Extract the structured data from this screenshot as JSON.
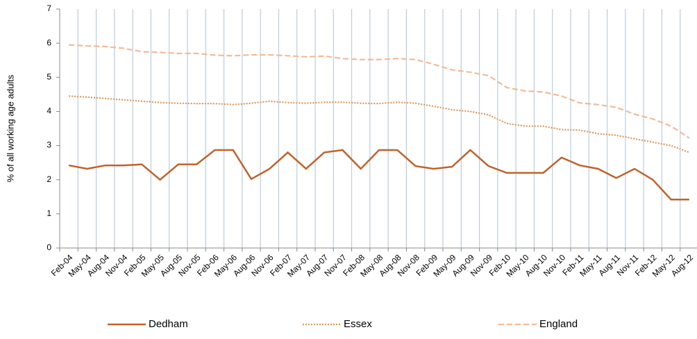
{
  "chart_data": {
    "type": "line",
    "y_label": "% of all working age adults",
    "categories": [
      "Feb-04",
      "May-04",
      "Aug-04",
      "Nov-04",
      "Feb-05",
      "May-05",
      "Aug-05",
      "Nov-05",
      "Feb-06",
      "May-06",
      "Aug-06",
      "Nov-06",
      "Feb-07",
      "May-07",
      "Aug-07",
      "Nov-07",
      "Feb-08",
      "May-08",
      "Aug-08",
      "Nov-08",
      "Feb-09",
      "May-09",
      "Aug-09",
      "Nov-09",
      "Feb-10",
      "May-10",
      "Aug-10",
      "Nov-10",
      "Feb-11",
      "May-11",
      "Aug-11",
      "Nov-11",
      "Feb-12",
      "May-12",
      "Aug-12"
    ],
    "series": [
      {
        "name": "Dedham",
        "color": "#c0622a",
        "line_style": "solid",
        "values": [
          2.42,
          2.32,
          2.42,
          2.42,
          2.45,
          2.0,
          2.45,
          2.45,
          2.87,
          2.87,
          2.02,
          2.32,
          2.8,
          2.32,
          2.8,
          2.87,
          2.32,
          2.87,
          2.87,
          2.4,
          2.32,
          2.38,
          2.87,
          2.4,
          2.2,
          2.2,
          2.2,
          2.65,
          2.42,
          2.32,
          2.05,
          2.32,
          2.0,
          1.42,
          1.42
        ]
      },
      {
        "name": "Essex",
        "color": "#e0965a",
        "line_style": "dotted",
        "values": [
          4.45,
          4.42,
          4.38,
          4.34,
          4.3,
          4.26,
          4.24,
          4.23,
          4.23,
          4.2,
          4.24,
          4.3,
          4.26,
          4.24,
          4.27,
          4.27,
          4.24,
          4.23,
          4.27,
          4.24,
          4.15,
          4.05,
          4.0,
          3.9,
          3.65,
          3.57,
          3.57,
          3.47,
          3.45,
          3.35,
          3.3,
          3.2,
          3.1,
          3.0,
          2.8
        ]
      },
      {
        "name": "England",
        "color": "#f5b994",
        "line_style": "dashed",
        "values": [
          5.95,
          5.92,
          5.9,
          5.85,
          5.75,
          5.73,
          5.7,
          5.7,
          5.65,
          5.63,
          5.66,
          5.66,
          5.63,
          5.6,
          5.62,
          5.55,
          5.52,
          5.52,
          5.55,
          5.52,
          5.38,
          5.22,
          5.15,
          5.05,
          4.7,
          4.6,
          4.57,
          4.45,
          4.25,
          4.2,
          4.12,
          3.92,
          3.78,
          3.57,
          3.22
        ]
      }
    ],
    "ylim": [
      0,
      7
    ],
    "yticks": [
      0,
      1,
      2,
      3,
      4,
      5,
      6,
      7
    ],
    "grid": "vertical",
    "legend": "bottom"
  }
}
